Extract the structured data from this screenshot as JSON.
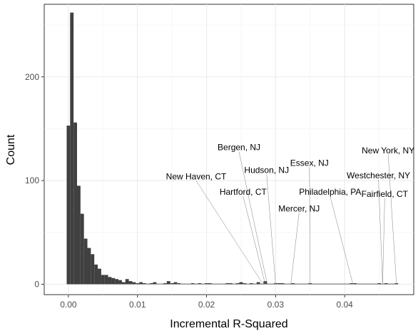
{
  "chart_data": {
    "type": "histogram",
    "title": "",
    "xlabel": "Incremental R-Squared",
    "ylabel": "Count",
    "xlim": [
      -0.0035,
      0.05
    ],
    "ylim": [
      -10,
      270
    ],
    "x_ticks": [
      0.0,
      0.01,
      0.02,
      0.03,
      0.04
    ],
    "x_tick_labels": [
      "0.00",
      "0.01",
      "0.02",
      "0.03",
      "0.04"
    ],
    "y_ticks": [
      0,
      100,
      200
    ],
    "y_tick_labels": [
      "0",
      "100",
      "200"
    ],
    "bin_width": 0.0005,
    "bin_start": -0.00025,
    "counts": [
      153,
      262,
      156,
      95,
      68,
      44,
      35,
      29,
      19,
      15,
      9,
      9,
      7,
      6,
      5,
      4,
      2,
      5,
      3,
      2,
      1,
      2,
      1,
      0,
      1,
      2,
      0,
      0,
      1,
      3,
      1,
      2,
      1,
      0,
      0,
      0,
      1,
      0,
      1,
      0,
      1,
      1,
      0,
      0,
      0,
      0,
      1,
      1,
      0,
      1,
      2,
      1,
      0,
      1,
      0,
      2,
      0,
      3,
      0,
      0,
      1,
      1,
      1,
      0,
      0,
      1,
      0,
      0,
      0,
      0,
      1,
      0,
      0,
      0,
      0,
      0,
      0,
      0,
      0,
      0,
      0,
      0,
      1,
      1,
      0,
      0,
      0,
      0,
      0,
      0,
      1,
      0,
      1,
      0,
      0,
      1
    ],
    "grid": true,
    "annotations": [
      {
        "label": "New York, NY",
        "x": 0.0475,
        "label_x": 0.0463,
        "label_y": 129
      },
      {
        "label": "Westchester, NY",
        "x": 0.0455,
        "label_x": 0.0449,
        "label_y": 105
      },
      {
        "label": "Fairfield, CT",
        "x": 0.0455,
        "label_x": 0.0458,
        "label_y": 87
      },
      {
        "label": "Essex, NJ",
        "x": 0.035,
        "label_x": 0.0349,
        "label_y": 117
      },
      {
        "label": "Philadelphia, PA",
        "x": 0.0412,
        "label_x": 0.0379,
        "label_y": 89
      },
      {
        "label": "Mercer, NJ",
        "x": 0.0322,
        "label_x": 0.0334,
        "label_y": 73
      },
      {
        "label": "Hudson, NJ",
        "x": 0.03,
        "label_x": 0.0287,
        "label_y": 110
      },
      {
        "label": "Bergen, NJ",
        "x": 0.0288,
        "label_x": 0.0247,
        "label_y": 132
      },
      {
        "label": "New Haven, CT",
        "x": 0.0282,
        "label_x": 0.0185,
        "label_y": 104
      },
      {
        "label": "Hartford, CT",
        "x": 0.0285,
        "label_x": 0.0253,
        "label_y": 89
      }
    ]
  }
}
